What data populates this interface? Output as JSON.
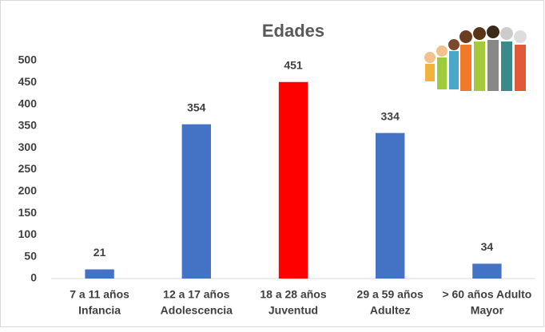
{
  "chart_data": {
    "type": "bar",
    "title": "Edades",
    "categories": [
      [
        "7 a 11 años",
        "Infancia"
      ],
      [
        "12 a 17 años",
        "Adolescencia"
      ],
      [
        "18 a 28 años",
        "Juventud"
      ],
      [
        "29 a 59 años",
        "Adultez"
      ],
      [
        "> 60 años Adulto",
        "Mayor"
      ]
    ],
    "values": [
      21,
      354,
      451,
      334,
      34
    ],
    "colors": [
      "#4472c4",
      "#4472c4",
      "#ff0000",
      "#4472c4",
      "#4472c4"
    ],
    "ylim": [
      0,
      500
    ],
    "yticks": [
      0,
      50,
      100,
      150,
      200,
      250,
      300,
      350,
      400,
      450,
      500
    ],
    "grid": false
  }
}
